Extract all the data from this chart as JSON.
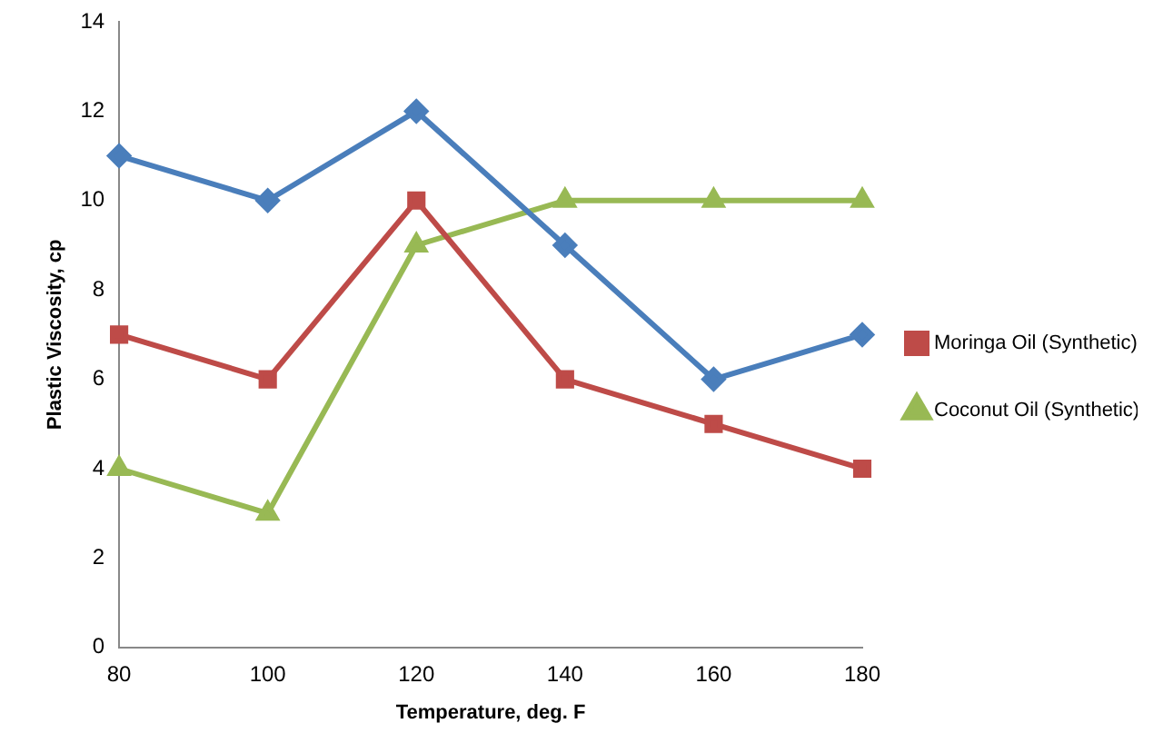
{
  "chart_data": {
    "type": "line",
    "xlabel": "Temperature, deg. F",
    "ylabel": "Plastic Viscosity, cp",
    "categories": [
      "80",
      "100",
      "120",
      "140",
      "160",
      "180"
    ],
    "series": [
      {
        "color": "#4a7ebb",
        "marker": "diamond",
        "values": [
          11,
          10,
          12,
          9,
          6,
          7
        ]
      },
      {
        "name": "Moringa Oil (Synthetic)",
        "color": "#be4b48",
        "marker": "square",
        "values": [
          7,
          6,
          10,
          6,
          5,
          4
        ]
      },
      {
        "name": "Coconut Oil (Synthetic)",
        "color": "#98b954",
        "marker": "triangle",
        "values": [
          4,
          3,
          9,
          10,
          10,
          10
        ]
      }
    ],
    "ylim": [
      0,
      14
    ],
    "yticks": [
      0,
      2,
      4,
      6,
      8,
      10,
      12,
      14
    ],
    "grid": false,
    "legend": "right",
    "line_style": "solid"
  }
}
